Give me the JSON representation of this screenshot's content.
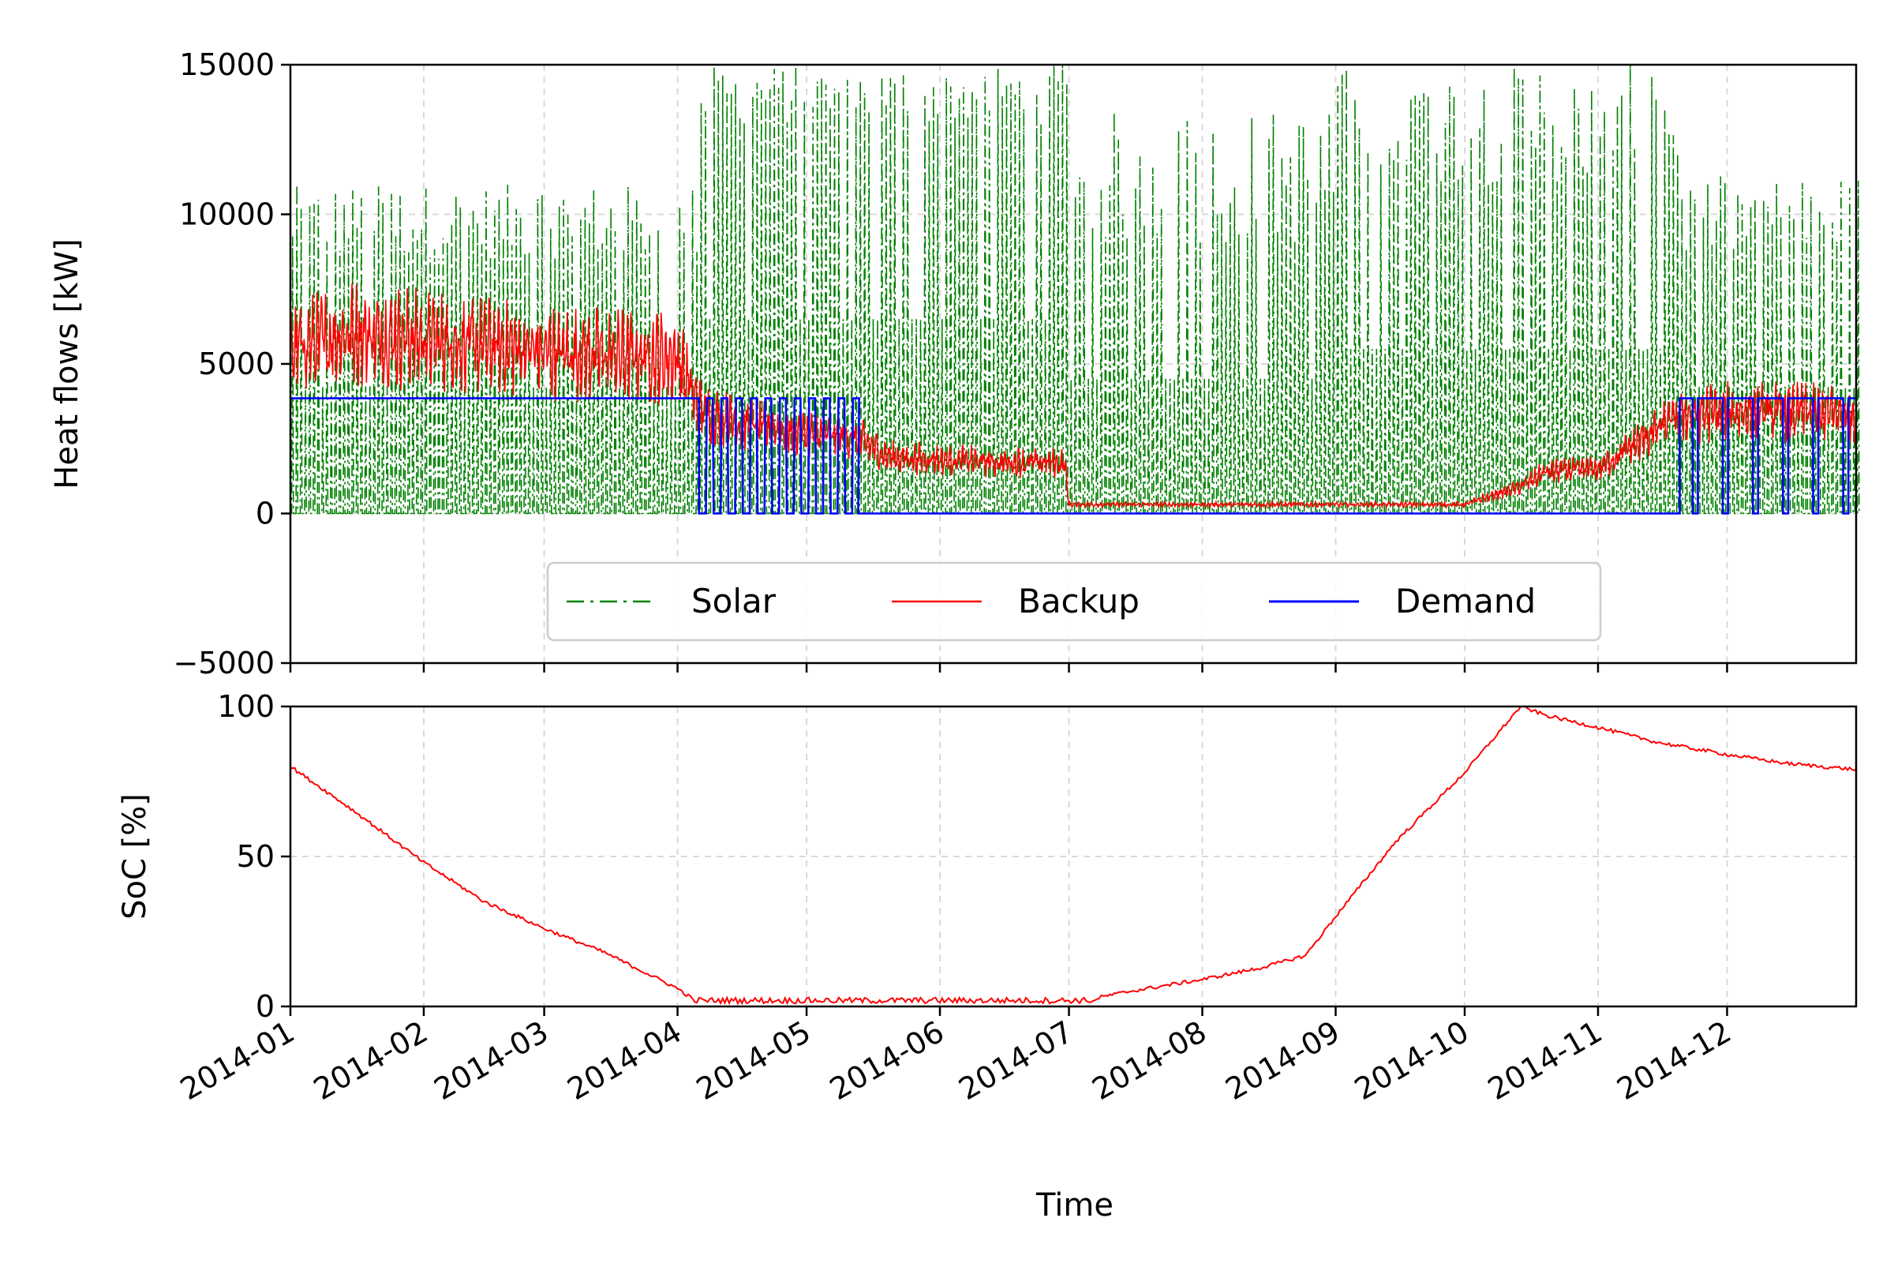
{
  "figure": {
    "xlabel": "Time"
  },
  "colors": {
    "solar": "#008000",
    "backup": "#ff0000",
    "demand": "#0000ff"
  },
  "chart_data": [
    {
      "type": "line",
      "ylabel": "Heat flows [kW]",
      "xlim": [
        "2014-01-01",
        "2014-12-31"
      ],
      "ylim": [
        -5000,
        15000
      ],
      "yticks": [
        -5000,
        0,
        5000,
        10000,
        15000
      ],
      "ytick_labels": [
        "−5000",
        "0",
        "5000",
        "10000",
        "15000"
      ],
      "grid": true,
      "legend": {
        "placement": "lower-center",
        "ncol": 3,
        "entries": [
          "Solar",
          "Backup",
          "Demand"
        ]
      },
      "series": [
        {
          "name": "Solar",
          "style": "dash-dot",
          "description": "daily solar heat output; daily peaks listed per month-phase",
          "phases": [
            {
              "start": "2014-01-01",
              "end": "2014-04-06",
              "daily_peak_range": [
                8500,
                11000
              ],
              "night_value": 0
            },
            {
              "start": "2014-04-06",
              "end": "2014-07-01",
              "daily_peak_range": [
                13000,
                15000
              ],
              "night_value": 0
            },
            {
              "start": "2014-07-01",
              "end": "2014-09-01",
              "daily_peak_range": [
                9000,
                13500
              ],
              "night_value": 0
            },
            {
              "start": "2014-09-01",
              "end": "2014-11-20",
              "daily_peak_range": [
                11000,
                15000
              ],
              "night_value": 0
            },
            {
              "start": "2014-11-20",
              "end": "2014-12-31",
              "daily_peak_range": [
                8500,
                11300
              ],
              "night_value": 0
            }
          ]
        },
        {
          "name": "Backup",
          "style": "solid",
          "x": [
            "2014-01-01",
            "2014-01-15",
            "2014-02-01",
            "2014-02-15",
            "2014-03-01",
            "2014-03-15",
            "2014-04-01",
            "2014-04-06",
            "2014-04-15",
            "2014-05-01",
            "2014-05-13",
            "2014-05-20",
            "2014-06-01",
            "2014-06-15",
            "2014-06-30",
            "2014-07-01",
            "2014-08-01",
            "2014-09-01",
            "2014-10-01",
            "2014-10-14",
            "2014-10-20",
            "2014-11-01",
            "2014-11-20",
            "2014-12-01",
            "2014-12-15",
            "2014-12-31"
          ],
          "y": [
            5500,
            6000,
            5800,
            5600,
            5400,
            5300,
            5200,
            3500,
            3000,
            2700,
            2500,
            1900,
            1800,
            1700,
            1700,
            300,
            300,
            300,
            300,
            900,
            1400,
            1500,
            3300,
            3400,
            3400,
            3300
          ]
        },
        {
          "name": "Demand",
          "style": "solid",
          "x": [
            "2014-01-01",
            "2014-04-06",
            "2014-04-06",
            "2014-05-13",
            "2014-05-13",
            "2014-11-20",
            "2014-11-20",
            "2014-12-31"
          ],
          "y": [
            3850,
            3850,
            3850,
            3850,
            0,
            0,
            3850,
            3850
          ],
          "notes": "pulsed between 0 and 3850 from 2014-04-06 to 2014-05-13 and from 2014-11-20 to 2014-12-31"
        }
      ]
    },
    {
      "type": "line",
      "ylabel": "SoC [%]",
      "xlim": [
        "2014-01-01",
        "2014-12-31"
      ],
      "ylim": [
        0,
        100
      ],
      "yticks": [
        0,
        50,
        100
      ],
      "ytick_labels": [
        "0",
        "50",
        "100"
      ],
      "grid": true,
      "xtick_labels": [
        "2014-01",
        "2014-02",
        "2014-03",
        "2014-04",
        "2014-05",
        "2014-06",
        "2014-07",
        "2014-08",
        "2014-09",
        "2014-10",
        "2014-11",
        "2014-12"
      ],
      "series": [
        {
          "name": "SoC",
          "x": [
            "2014-01-01",
            "2014-01-15",
            "2014-02-01",
            "2014-02-15",
            "2014-03-01",
            "2014-03-15",
            "2014-04-01",
            "2014-04-06",
            "2014-05-01",
            "2014-06-01",
            "2014-07-01",
            "2014-07-15",
            "2014-08-01",
            "2014-08-15",
            "2014-08-25",
            "2014-09-01",
            "2014-09-15",
            "2014-10-01",
            "2014-10-14",
            "2014-10-20",
            "2014-11-01",
            "2014-11-15",
            "2014-12-01",
            "2014-12-15",
            "2014-12-31"
          ],
          "y": [
            80,
            66,
            48,
            35,
            26,
            18,
            6,
            1,
            1,
            1,
            1,
            5,
            9,
            13,
            17,
            30,
            55,
            78,
            100,
            97,
            93,
            88,
            84,
            81,
            79
          ]
        }
      ]
    }
  ]
}
